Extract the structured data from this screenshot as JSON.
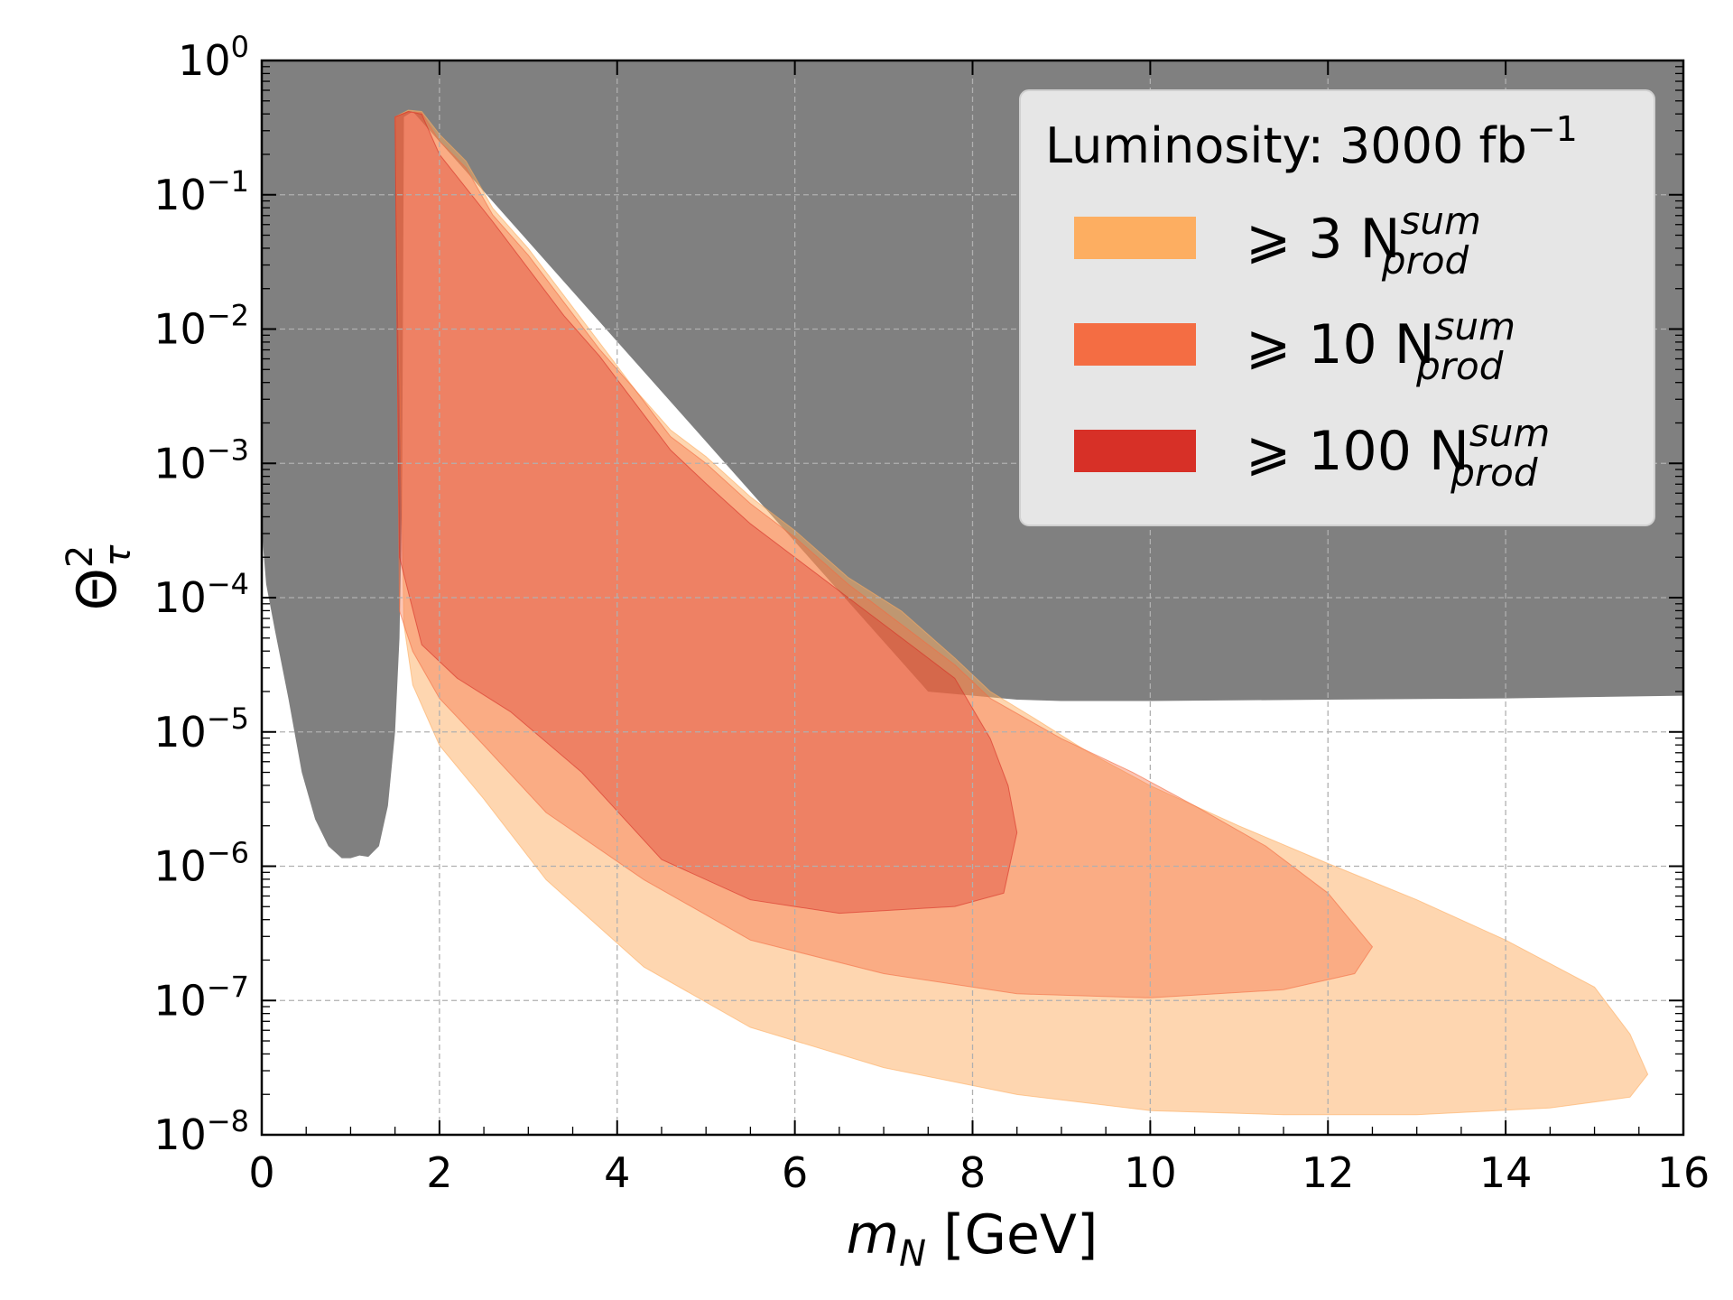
{
  "chart_data": {
    "type": "area",
    "xlabel": "m",
    "xlabel_sub": "N",
    "xlabel_unit": " [GeV]",
    "ylabel": "Θ",
    "ylabel_sup": "2",
    "ylabel_sub": "τ",
    "xlim": [
      0,
      16
    ],
    "ylim_log10": [
      -8,
      0
    ],
    "y_scale": "log",
    "grid": true,
    "x_ticks": [
      "0",
      "2",
      "4",
      "6",
      "8",
      "10",
      "12",
      "14",
      "16"
    ],
    "y_tick_exponents": [
      "0",
      "−1",
      "−2",
      "−3",
      "−4",
      "−5",
      "−6",
      "−7",
      "−8"
    ],
    "y_tick_base": "10",
    "legend": {
      "placement": "top-right",
      "title": "Luminosity: 3000 fb",
      "title_sup": "−1",
      "entries": [
        {
          "prefix": "⩾ 3 N",
          "sup": "sum",
          "sub": "prod",
          "color": "#fdae61"
        },
        {
          "prefix": "⩾ 10 N",
          "sup": "sum",
          "sub": "prod",
          "color": "#f46d43"
        },
        {
          "prefix": "⩾ 100 N",
          "sup": "sum",
          "sub": "prod",
          "color": "#d73027"
        }
      ]
    },
    "excluded_region": {
      "color": "#808080",
      "upper_bound_log10": 0,
      "lower_boundary": [
        [
          0.0,
          -3.5
        ],
        [
          0.05,
          -3.9
        ],
        [
          0.15,
          -4.25
        ],
        [
          0.3,
          -4.75
        ],
        [
          0.45,
          -5.3
        ],
        [
          0.6,
          -5.65
        ],
        [
          0.75,
          -5.85
        ],
        [
          0.9,
          -5.94
        ],
        [
          1.0,
          -5.94
        ],
        [
          1.1,
          -5.92
        ],
        [
          1.2,
          -5.93
        ],
        [
          1.32,
          -5.85
        ],
        [
          1.42,
          -5.55
        ],
        [
          1.5,
          -5.0
        ],
        [
          1.55,
          -4.3
        ],
        [
          1.58,
          -3.2
        ],
        [
          1.6,
          -0.42
        ],
        [
          1.7,
          -0.38
        ],
        [
          7.5,
          -4.7
        ],
        [
          8.5,
          -4.76
        ],
        [
          9.0,
          -4.77
        ],
        [
          10,
          -4.77
        ],
        [
          12,
          -4.76
        ],
        [
          14,
          -4.75
        ],
        [
          16,
          -4.73
        ]
      ]
    },
    "series": [
      {
        "name": "⩾ 3 N_prod^sum",
        "color": "#fdae61",
        "boundary": [
          [
            1.5,
            -0.42
          ],
          [
            1.65,
            -0.37
          ],
          [
            1.8,
            -0.38
          ],
          [
            2.0,
            -0.55
          ],
          [
            2.3,
            -0.75
          ],
          [
            2.6,
            -1.1
          ],
          [
            3.0,
            -1.4
          ],
          [
            3.4,
            -1.75
          ],
          [
            3.8,
            -2.1
          ],
          [
            4.2,
            -2.45
          ],
          [
            4.6,
            -2.75
          ],
          [
            5.0,
            -2.95
          ],
          [
            5.5,
            -3.25
          ],
          [
            6.0,
            -3.5
          ],
          [
            6.6,
            -3.85
          ],
          [
            7.2,
            -4.1
          ],
          [
            7.8,
            -4.45
          ],
          [
            8.2,
            -4.7
          ],
          [
            8.7,
            -4.9
          ],
          [
            9.3,
            -5.15
          ],
          [
            10.0,
            -5.4
          ],
          [
            11.0,
            -5.7
          ],
          [
            12.0,
            -5.98
          ],
          [
            13.0,
            -6.25
          ],
          [
            14.0,
            -6.55
          ],
          [
            15.0,
            -6.9
          ],
          [
            15.4,
            -7.25
          ],
          [
            15.6,
            -7.55
          ],
          [
            15.4,
            -7.72
          ],
          [
            14.5,
            -7.8
          ],
          [
            13.0,
            -7.85
          ],
          [
            11.5,
            -7.85
          ],
          [
            10.0,
            -7.82
          ],
          [
            8.5,
            -7.7
          ],
          [
            7.0,
            -7.5
          ],
          [
            5.5,
            -7.2
          ],
          [
            4.3,
            -6.75
          ],
          [
            3.2,
            -6.1
          ],
          [
            2.5,
            -5.5
          ],
          [
            2.0,
            -5.1
          ],
          [
            1.7,
            -4.65
          ],
          [
            1.6,
            -4.2
          ]
        ]
      },
      {
        "name": "⩾ 10 N_prod^sum",
        "color": "#f46d43",
        "boundary": [
          [
            1.5,
            -0.42
          ],
          [
            1.65,
            -0.38
          ],
          [
            1.8,
            -0.39
          ],
          [
            2.0,
            -0.6
          ],
          [
            2.3,
            -0.8
          ],
          [
            2.6,
            -1.15
          ],
          [
            3.0,
            -1.45
          ],
          [
            3.4,
            -1.8
          ],
          [
            3.8,
            -2.15
          ],
          [
            4.2,
            -2.45
          ],
          [
            4.6,
            -2.8
          ],
          [
            5.0,
            -3.0
          ],
          [
            5.5,
            -3.3
          ],
          [
            6.0,
            -3.55
          ],
          [
            6.6,
            -3.9
          ],
          [
            7.2,
            -4.2
          ],
          [
            7.8,
            -4.5
          ],
          [
            8.2,
            -4.75
          ],
          [
            9.0,
            -5.05
          ],
          [
            9.8,
            -5.3
          ],
          [
            10.5,
            -5.55
          ],
          [
            11.3,
            -5.85
          ],
          [
            12.0,
            -6.2
          ],
          [
            12.5,
            -6.6
          ],
          [
            12.3,
            -6.8
          ],
          [
            11.5,
            -6.92
          ],
          [
            10.0,
            -6.98
          ],
          [
            8.5,
            -6.95
          ],
          [
            7.0,
            -6.8
          ],
          [
            5.5,
            -6.55
          ],
          [
            4.3,
            -6.1
          ],
          [
            3.2,
            -5.6
          ],
          [
            2.5,
            -5.1
          ],
          [
            2.0,
            -4.75
          ],
          [
            1.7,
            -4.4
          ],
          [
            1.55,
            -4.1
          ]
        ]
      },
      {
        "name": "⩾ 100 N_prod^sum",
        "color": "#d73027",
        "boundary": [
          [
            1.5,
            -0.42
          ],
          [
            1.65,
            -0.38
          ],
          [
            1.8,
            -0.4
          ],
          [
            2.0,
            -0.7
          ],
          [
            2.3,
            -0.95
          ],
          [
            2.6,
            -1.2
          ],
          [
            3.0,
            -1.55
          ],
          [
            3.4,
            -1.9
          ],
          [
            3.8,
            -2.2
          ],
          [
            4.2,
            -2.55
          ],
          [
            4.6,
            -2.9
          ],
          [
            5.0,
            -3.15
          ],
          [
            5.5,
            -3.45
          ],
          [
            6.0,
            -3.7
          ],
          [
            6.6,
            -4.0
          ],
          [
            7.2,
            -4.3
          ],
          [
            7.8,
            -4.6
          ],
          [
            8.2,
            -5.05
          ],
          [
            8.4,
            -5.4
          ],
          [
            8.5,
            -5.75
          ],
          [
            8.35,
            -6.2
          ],
          [
            7.8,
            -6.3
          ],
          [
            6.5,
            -6.35
          ],
          [
            5.5,
            -6.25
          ],
          [
            4.5,
            -5.95
          ],
          [
            3.6,
            -5.3
          ],
          [
            2.8,
            -4.85
          ],
          [
            2.2,
            -4.6
          ],
          [
            1.8,
            -4.35
          ],
          [
            1.55,
            -3.7
          ]
        ]
      }
    ]
  }
}
